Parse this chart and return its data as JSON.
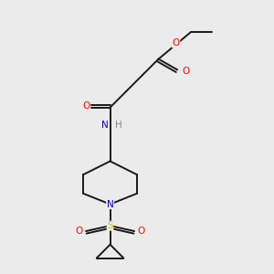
{
  "bg_color": "#ebebeb",
  "figsize": [
    3.0,
    3.0
  ],
  "dpi": 100,
  "bond_color": "#1a1a1a",
  "atom_colors": {
    "O": "#ff0000",
    "N": "#0000cc",
    "S": "#cccc00",
    "C": "#1a1a1a",
    "H": "#888888"
  },
  "lw": 1.4,
  "fs": 7.5
}
